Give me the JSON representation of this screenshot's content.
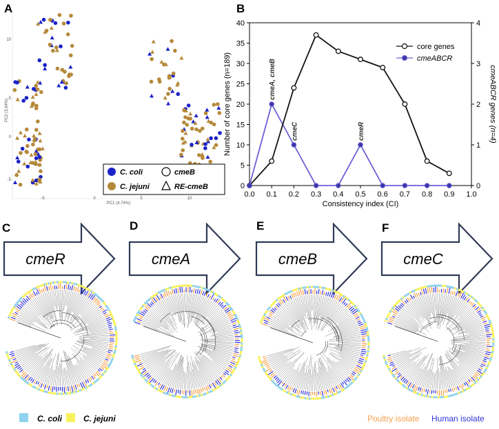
{
  "panels": {
    "A": "A",
    "B": "B",
    "C": "C",
    "D": "D",
    "E": "E",
    "F": "F"
  },
  "pca": {
    "xlabel": "PC1 (4.74%)",
    "ylabel": "PC2 (3.94%)",
    "xticks": [
      "-5",
      "0",
      "5",
      "10"
    ],
    "yticks": [
      "10",
      "5",
      "0",
      "-5"
    ],
    "legend": {
      "coli": "C. coli",
      "jejuni": "C. jejuni",
      "cmeB": "cmeB",
      "recmeB": "RE-cmeB"
    },
    "colors": {
      "coli": "#1a22c8",
      "jejuni": "#b5893a"
    }
  },
  "chart_data": {
    "type": "line",
    "x": [
      0.0,
      0.1,
      0.2,
      0.3,
      0.4,
      0.5,
      0.6,
      0.7,
      0.8,
      0.9
    ],
    "xlabel": "Consistency index  (CI)",
    "ylabel": "Number of core genes (n=189)",
    "y2label": "cmeABCR genes (n=4)",
    "xlim": [
      0.0,
      1.0
    ],
    "ylim": [
      0,
      40
    ],
    "y2lim": [
      0,
      4
    ],
    "xticks": [
      "0.0",
      "0.1",
      "0.2",
      "0.3",
      "0.4",
      "0.5",
      "0.6",
      "0.7",
      "0.8",
      "0.9",
      "1.0"
    ],
    "yticks": [
      "0",
      "5",
      "10",
      "15",
      "20",
      "25",
      "30",
      "35",
      "40"
    ],
    "y2ticks": [
      "0",
      "1",
      "2",
      "3",
      "4"
    ],
    "series": [
      {
        "name": "core genes",
        "axis": "left",
        "color": "#111111",
        "values": [
          0,
          6,
          24,
          37,
          33,
          31,
          29,
          20,
          6,
          3
        ]
      },
      {
        "name": "cmeABCR",
        "axis": "right",
        "color": "#6b5fd6",
        "values": [
          0,
          2,
          1,
          0,
          0,
          1,
          0,
          0,
          0,
          0
        ]
      }
    ],
    "annotations": [
      {
        "x": 0.1,
        "y": 2,
        "text": "cmeA, cmeB"
      },
      {
        "x": 0.2,
        "y": 1,
        "text": "cmeC"
      },
      {
        "x": 0.5,
        "y": 1,
        "text": "cmeR"
      }
    ]
  },
  "genes": [
    "cmeR",
    "cmeA",
    "cmeB",
    "cmeC"
  ],
  "bottom_legend": {
    "coli": "C. coli",
    "jejuni": "C. jejuni",
    "poultry": "Poultry isolate",
    "human": "Human isolate",
    "coli_color": "#8fd3ef",
    "jejuni_color": "#f8f15b",
    "poultry_color": "#f5a04a",
    "human_color": "#2f33d8"
  }
}
